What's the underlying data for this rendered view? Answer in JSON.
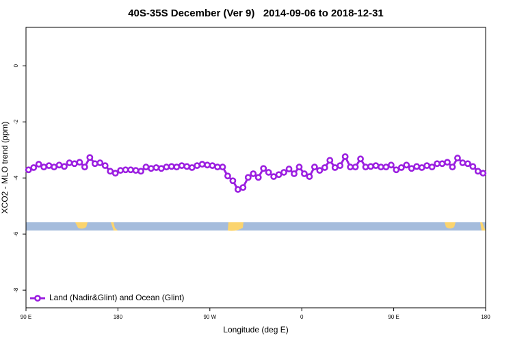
{
  "chart_data": {
    "type": "line",
    "title": "40S-35S December (Ver 9)   2014-09-06 to 2018-12-31",
    "xlabel": "Longitude (deg E)",
    "ylabel": "XCO2 - MLO trend (ppm)",
    "x": [
      92.5,
      97.5,
      102.5,
      107.5,
      112.5,
      117.5,
      122.5,
      127.5,
      132.5,
      137.5,
      142.5,
      147.5,
      152.5,
      157.5,
      162.5,
      167.5,
      172.5,
      177.5,
      182.5,
      187.5,
      192.5,
      197.5,
      202.5,
      207.5,
      212.5,
      217.5,
      222.5,
      227.5,
      232.5,
      237.5,
      242.5,
      247.5,
      252.5,
      257.5,
      262.5,
      267.5,
      272.5,
      277.5,
      282.5,
      287.5,
      292.5,
      297.5,
      302.5,
      307.5,
      312.5,
      317.5,
      322.5,
      327.5,
      332.5,
      337.5,
      342.5,
      347.5,
      352.5,
      357.5,
      362.5,
      367.5,
      372.5,
      377.5,
      382.5,
      387.5,
      392.5,
      397.5,
      402.5,
      407.5,
      412.5,
      417.5,
      422.5,
      427.5,
      432.5,
      437.5,
      442.5,
      447.5,
      452.5,
      457.5,
      462.5,
      467.5,
      472.5,
      477.5,
      482.5,
      487.5,
      492.5,
      497.5,
      502.5,
      507.5,
      512.5,
      517.5,
      522.5,
      527.5,
      532.5,
      537.5
    ],
    "series": [
      {
        "name": "Land (Nadir&Glint) and Ocean (Glint)",
        "color": "#9b1fe0",
        "values": [
          -3.71,
          -3.63,
          -3.51,
          -3.61,
          -3.56,
          -3.61,
          -3.54,
          -3.59,
          -3.46,
          -3.49,
          -3.44,
          -3.61,
          -3.27,
          -3.49,
          -3.46,
          -3.56,
          -3.76,
          -3.83,
          -3.73,
          -3.71,
          -3.71,
          -3.73,
          -3.76,
          -3.61,
          -3.66,
          -3.63,
          -3.66,
          -3.61,
          -3.59,
          -3.61,
          -3.56,
          -3.59,
          -3.63,
          -3.56,
          -3.51,
          -3.54,
          -3.56,
          -3.61,
          -3.61,
          -3.93,
          -4.1,
          -4.41,
          -4.34,
          -3.98,
          -3.85,
          -3.98,
          -3.66,
          -3.8,
          -3.95,
          -3.88,
          -3.8,
          -3.68,
          -3.85,
          -3.61,
          -3.85,
          -3.95,
          -3.61,
          -3.73,
          -3.63,
          -3.37,
          -3.63,
          -3.56,
          -3.24,
          -3.61,
          -3.61,
          -3.32,
          -3.61,
          -3.59,
          -3.56,
          -3.61,
          -3.61,
          -3.54,
          -3.71,
          -3.63,
          -3.54,
          -3.66,
          -3.59,
          -3.63,
          -3.56,
          -3.61,
          -3.49,
          -3.49,
          -3.44,
          -3.61,
          -3.29,
          -3.46,
          -3.49,
          -3.59,
          -3.76,
          -3.83
        ]
      }
    ],
    "xlim": [
      90,
      540
    ],
    "xticks": [
      {
        "value": 90,
        "label": "90 E"
      },
      {
        "value": 180,
        "label": "180"
      },
      {
        "value": 270,
        "label": "90 W"
      },
      {
        "value": 360,
        "label": "0"
      },
      {
        "value": 450,
        "label": "90 E"
      },
      {
        "value": 540,
        "label": "180"
      }
    ],
    "ylim": [
      -8.63,
      1.37
    ],
    "yticks": [
      0,
      -2,
      -4,
      -6,
      -8
    ],
    "legend": "bottom-left"
  }
}
